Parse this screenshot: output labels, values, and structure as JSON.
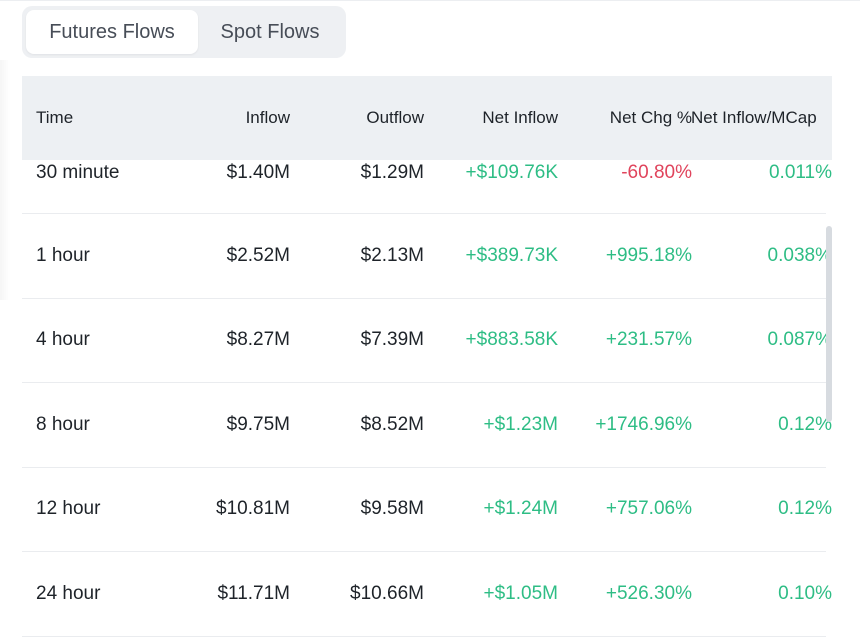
{
  "tabs": [
    {
      "label": "Futures Flows",
      "active": true
    },
    {
      "label": "Spot Flows",
      "active": false
    }
  ],
  "table": {
    "headers": {
      "time": "Time",
      "inflow": "Inflow",
      "outflow": "Outflow",
      "net_inflow": "Net Inflow",
      "net_chg": "Net Chg %",
      "net_mcap": "Net Inflow/MCap"
    },
    "rows": [
      {
        "time": "30 minute",
        "inflow": "$1.40M",
        "outflow": "$1.29M",
        "net_inflow": "+$109.76K",
        "net_chg": "-60.80%",
        "net_mcap": "0.011%"
      },
      {
        "time": "1 hour",
        "inflow": "$2.52M",
        "outflow": "$2.13M",
        "net_inflow": "+$389.73K",
        "net_chg": "+995.18%",
        "net_mcap": "0.038%"
      },
      {
        "time": "4 hour",
        "inflow": "$8.27M",
        "outflow": "$7.39M",
        "net_inflow": "+$883.58K",
        "net_chg": "+231.57%",
        "net_mcap": "0.087%"
      },
      {
        "time": "8 hour",
        "inflow": "$9.75M",
        "outflow": "$8.52M",
        "net_inflow": "+$1.23M",
        "net_chg": "+1746.96%",
        "net_mcap": "0.12%"
      },
      {
        "time": "12 hour",
        "inflow": "$10.81M",
        "outflow": "$9.58M",
        "net_inflow": "+$1.24M",
        "net_chg": "+757.06%",
        "net_mcap": "0.12%"
      },
      {
        "time": "24 hour",
        "inflow": "$11.71M",
        "outflow": "$10.66M",
        "net_inflow": "+$1.05M",
        "net_chg": "+526.30%",
        "net_mcap": "0.10%"
      }
    ]
  },
  "colors": {
    "positive": "#2ebd85",
    "negative": "#e0445c",
    "header_bg": "#edf0f3",
    "tab_bg": "#eef0f3"
  }
}
